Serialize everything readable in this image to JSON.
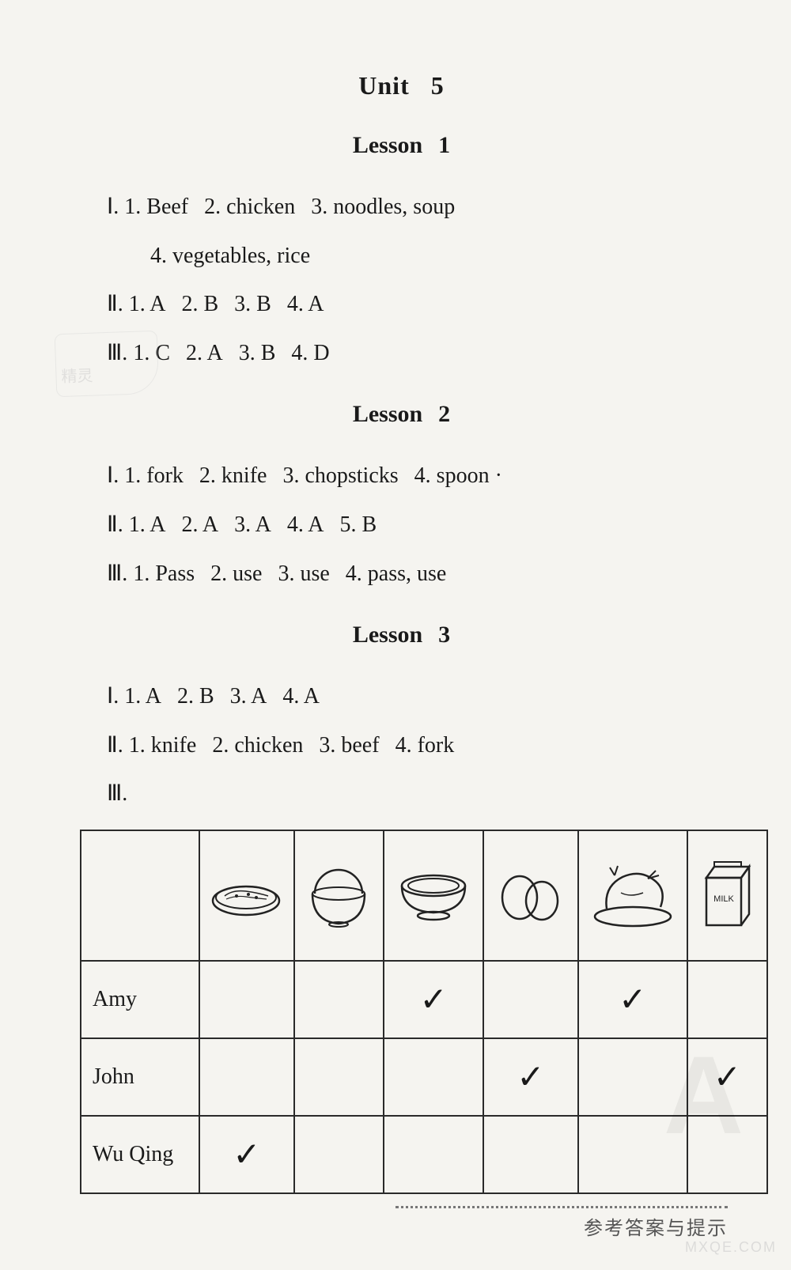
{
  "unit": {
    "label": "Unit",
    "number": "5"
  },
  "lessons": [
    {
      "label": "Lesson",
      "number": "1",
      "lines": [
        {
          "roman": "Ⅰ",
          "items": [
            "1. Beef",
            "2. chicken",
            "3. noodles, soup"
          ]
        },
        {
          "roman": "",
          "indent": true,
          "items": [
            "4. vegetables, rice"
          ]
        },
        {
          "roman": "Ⅱ",
          "items": [
            "1. A",
            "2. B",
            "3. B",
            "4. A"
          ]
        },
        {
          "roman": "Ⅲ",
          "items": [
            "1. C",
            "2. A",
            "3. B",
            "4. D"
          ]
        }
      ]
    },
    {
      "label": "Lesson",
      "number": "2",
      "lines": [
        {
          "roman": "Ⅰ",
          "items": [
            "1. fork",
            "2. knife",
            "3. chopsticks",
            "4. spoon   ·"
          ]
        },
        {
          "roman": "Ⅱ",
          "items": [
            "1. A",
            "2. A",
            "3. A",
            "4. A",
            "5. B"
          ]
        },
        {
          "roman": "Ⅲ",
          "items": [
            "1. Pass",
            "2. use",
            "3. use",
            "4. pass, use"
          ]
        }
      ]
    },
    {
      "label": "Lesson",
      "number": "3",
      "lines": [
        {
          "roman": "Ⅰ",
          "items": [
            "1. A",
            "2. B",
            "3. A",
            "4. A"
          ]
        },
        {
          "roman": "Ⅱ",
          "items": [
            "1. knife",
            "2. chicken",
            "3. beef",
            "4. fork"
          ]
        },
        {
          "roman": "Ⅲ",
          "items": [
            ""
          ]
        }
      ]
    }
  ],
  "table": {
    "columns": [
      "",
      "noodles",
      "rice",
      "soup",
      "eggs",
      "chicken",
      "milk"
    ],
    "rows": [
      {
        "name": "Amy",
        "checks": [
          false,
          false,
          true,
          false,
          true,
          false
        ]
      },
      {
        "name": "John",
        "checks": [
          false,
          false,
          false,
          true,
          false,
          true
        ]
      },
      {
        "name": "Wu Qing",
        "checks": [
          true,
          false,
          false,
          false,
          false,
          false
        ]
      }
    ],
    "check_glyph": "✓"
  },
  "footer": "参考答案与提示",
  "stamp": "精灵",
  "watermark_big": "A",
  "watermark_corner": "MXQE.COM",
  "colors": {
    "background": "#f5f4f0",
    "text": "#1a1a1a",
    "border": "#2a2a2a",
    "footer": "#555555"
  }
}
